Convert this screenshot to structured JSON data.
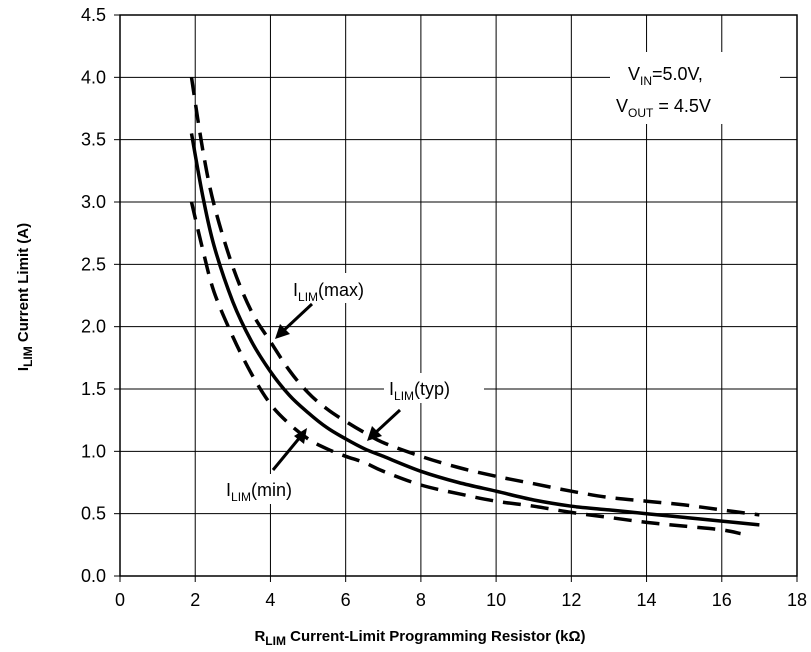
{
  "chart_data": {
    "type": "line",
    "title": "",
    "xlabel": {
      "prefix": "R",
      "sub": "LIM",
      "rest": " Current-Limit Programming Resistor (kΩ)"
    },
    "ylabel": {
      "prefix": "I",
      "sub": "LIM",
      "rest": " Current Limit (A)"
    },
    "xlim": [
      0,
      18
    ],
    "ylim": [
      0,
      4.5
    ],
    "xticks": [
      "0",
      "2",
      "4",
      "6",
      "8",
      "10",
      "12",
      "14",
      "16",
      "18"
    ],
    "yticks": [
      "0.0",
      "0.5",
      "1.0",
      "1.5",
      "2.0",
      "2.5",
      "3.0",
      "3.5",
      "4.0",
      "4.5"
    ],
    "grid": true,
    "series": [
      {
        "name": "ILIM(typ)",
        "style": "solid",
        "x": [
          1.9,
          2.2,
          2.5,
          3,
          3.5,
          4,
          4.5,
          5,
          5.5,
          6,
          6.5,
          7,
          8,
          9,
          10,
          11,
          12,
          13,
          14,
          15,
          16,
          17
        ],
        "y": [
          3.55,
          3.05,
          2.65,
          2.2,
          1.88,
          1.64,
          1.45,
          1.31,
          1.19,
          1.1,
          1.02,
          0.96,
          0.84,
          0.75,
          0.68,
          0.61,
          0.56,
          0.53,
          0.5,
          0.47,
          0.44,
          0.41
        ]
      },
      {
        "name": "ILIM(max)",
        "style": "dashed",
        "x": [
          1.9,
          2.2,
          2.5,
          3,
          3.5,
          4,
          4.5,
          5,
          5.5,
          6,
          6.5,
          7,
          8,
          9,
          10,
          11,
          12,
          13,
          14,
          15,
          16,
          17
        ],
        "y": [
          4.0,
          3.42,
          2.98,
          2.48,
          2.12,
          1.88,
          1.65,
          1.47,
          1.34,
          1.24,
          1.15,
          1.07,
          0.96,
          0.87,
          0.8,
          0.74,
          0.68,
          0.63,
          0.6,
          0.57,
          0.53,
          0.49
        ]
      },
      {
        "name": "ILIM(min)",
        "style": "dashed",
        "x": [
          1.9,
          2.2,
          2.5,
          3,
          3.5,
          4,
          4.5,
          5,
          5.5,
          6,
          6.5,
          7,
          8,
          9,
          10,
          11,
          12,
          13,
          14,
          15,
          16,
          16.5
        ],
        "y": [
          3.0,
          2.62,
          2.28,
          1.92,
          1.62,
          1.38,
          1.22,
          1.1,
          1.02,
          0.96,
          0.91,
          0.84,
          0.73,
          0.66,
          0.6,
          0.56,
          0.51,
          0.47,
          0.43,
          0.4,
          0.37,
          0.34
        ]
      }
    ],
    "annotations": {
      "conditions": {
        "line1": {
          "a": "V",
          "sub": "IN",
          "b": "=5.0V,"
        },
        "line2": {
          "a": "V",
          "sub": "OUT",
          "b": " = 4.5V"
        }
      },
      "labels": [
        {
          "id": "max",
          "a": "I",
          "sub": "LIM",
          "b": "(max)",
          "pointer": "upper"
        },
        {
          "id": "typ",
          "a": "I",
          "sub": "LIM",
          "b": "(typ)",
          "pointer": "upper"
        },
        {
          "id": "min",
          "a": "I",
          "sub": "LIM",
          "b": "(min)",
          "pointer": "lower"
        }
      ]
    }
  }
}
